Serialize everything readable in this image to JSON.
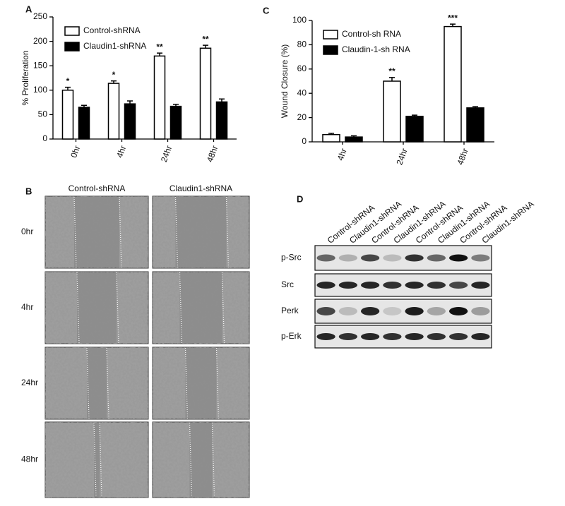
{
  "chart_data": [
    {
      "type": "bar",
      "panel": "A",
      "y_label": "% Proliferation",
      "categories": [
        "0hr",
        "4hr",
        "24hr",
        "48hr"
      ],
      "series": [
        {
          "name": "Control-shRNA",
          "color": "#ffffff",
          "values": [
            100,
            114,
            170,
            186
          ],
          "errors": [
            6,
            5,
            6,
            6
          ]
        },
        {
          "name": "Claudin1-shRNA",
          "color": "#000000",
          "values": [
            65,
            72,
            67,
            76
          ],
          "errors": [
            4,
            6,
            4,
            6
          ]
        }
      ],
      "annotations": [
        "*",
        "*",
        "**",
        "**"
      ],
      "ylim": [
        0,
        250
      ],
      "yticks": [
        0,
        50,
        100,
        150,
        200,
        250
      ],
      "legend": "upper left"
    },
    {
      "type": "bar",
      "panel": "C",
      "y_label": "Wound Closure (%)",
      "categories": [
        "4hr",
        "24hr",
        "48hr"
      ],
      "series": [
        {
          "name": "Control-sh RNA",
          "color": "#ffffff",
          "values": [
            6,
            50,
            95
          ],
          "errors": [
            1,
            3,
            2
          ]
        },
        {
          "name": "Claudin-1-sh RNA",
          "color": "#000000",
          "values": [
            4,
            21,
            28
          ],
          "errors": [
            1,
            1,
            1
          ]
        }
      ],
      "annotations": [
        null,
        "**",
        "***"
      ],
      "ylim": [
        0,
        100
      ],
      "yticks": [
        0,
        20,
        40,
        60,
        80,
        100
      ],
      "legend": "upper left"
    }
  ],
  "panel_b": {
    "panel": "B",
    "columns": [
      "Control-shRNA",
      "Claudin1-shRNA"
    ],
    "rows": [
      "0hr",
      "4hr",
      "24hr",
      "48hr"
    ]
  },
  "panel_d": {
    "panel": "D",
    "lanes": [
      "Control-shRNA",
      "Claudin1-shRNA",
      "Control-shRNA",
      "Claudin1-shRNA",
      "Control-shRNA",
      "Claudin1-shRNA",
      "Control-shRNA",
      "Claudin1-shRNA"
    ],
    "rows": [
      "p-Src",
      "Src",
      "Perk",
      "p-Erk"
    ]
  }
}
